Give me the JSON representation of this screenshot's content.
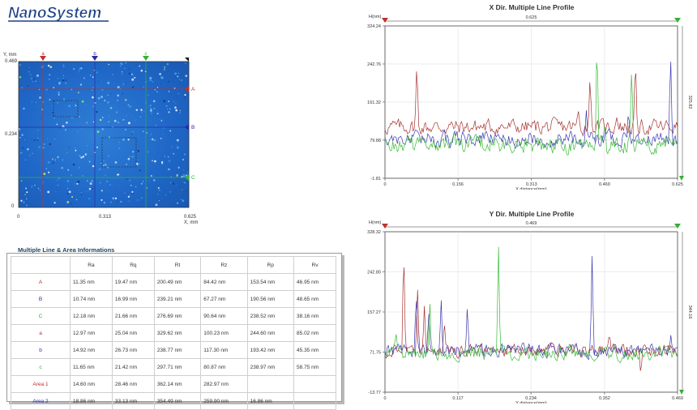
{
  "app": {
    "logo_text": "NanoSystem"
  },
  "map": {
    "y_unit": "Y, mm",
    "x_unit": "X, mm",
    "y_ticks": [
      "0.469",
      "0.234",
      "0"
    ],
    "x_ticks": [
      "0",
      "0.313",
      "0.625"
    ],
    "top_markers": [
      {
        "label": "a",
        "color": "#c0302a"
      },
      {
        "label": "b",
        "color": "#2a2aa8"
      },
      {
        "label": "c",
        "color": "#35b035"
      }
    ],
    "side_markers": [
      {
        "label": "A",
        "color": "#c0302a"
      },
      {
        "label": "B",
        "color": "#2a2aa8"
      },
      {
        "label": "C",
        "color": "#35b035"
      }
    ]
  },
  "info": {
    "title": "Multiple Line & Area Informations",
    "headers": [
      "",
      "Ra",
      "Rq",
      "Rt",
      "Rz",
      "Rp",
      "Rv"
    ],
    "rows": [
      {
        "name": "A",
        "color": "#c0302a",
        "cells": [
          "11.35 nm",
          "19.47 nm",
          "200.49 nm",
          "84.42 nm",
          "153.54 nm",
          "46.95 nm"
        ]
      },
      {
        "name": "B",
        "color": "#2a2aa8",
        "cells": [
          "10.74 nm",
          "16.99 nm",
          "239.21 nm",
          "67.27 nm",
          "190.56 nm",
          "48.65 nm"
        ]
      },
      {
        "name": "C",
        "color": "#35b035",
        "cells": [
          "12.18 nm",
          "21.66 nm",
          "276.69 nm",
          "90.64 nm",
          "238.52 nm",
          "38.16 nm"
        ]
      },
      {
        "name": "a",
        "color": "#c0302a",
        "cells": [
          "12.97 nm",
          "25.04 nm",
          "329.62 nm",
          "100.23 nm",
          "244.60 nm",
          "85.02 nm"
        ]
      },
      {
        "name": "b",
        "color": "#2a2aa8",
        "cells": [
          "14.92 nm",
          "26.73 nm",
          "238.77 nm",
          "117.30 nm",
          "193.42 nm",
          "45.35 nm"
        ]
      },
      {
        "name": "c",
        "color": "#35b035",
        "cells": [
          "11.65 nm",
          "21.42 nm",
          "297.71 nm",
          "80.87 nm",
          "238.97 nm",
          "58.75 nm"
        ]
      },
      {
        "name": "Area 1",
        "color": "#c0302a",
        "cells": [
          "14.60 nm",
          "28.46 nm",
          "362.14 nm",
          "282.97 nm",
          "",
          ""
        ]
      },
      {
        "name": "Area 2",
        "color": "#2a2aa8",
        "cells": [
          "18.86 nm",
          "33.13 nm",
          "354.49 nm",
          "259.90 nm",
          "16.86 nm",
          ""
        ]
      }
    ]
  },
  "chart_data": [
    {
      "type": "line",
      "title": "X Dir. Multiple Line Profile",
      "ylabel": "H(nm)",
      "xlabel": "X distance(mm)",
      "top_value": "0.625",
      "right_value": "325.82",
      "ylim": [
        -1.81,
        324.24
      ],
      "y_ticks": [
        "324.24",
        "242.76",
        "161.32",
        "79.88",
        "-1.81"
      ],
      "xlim": [
        0,
        0.625
      ],
      "x_ticks": [
        "0",
        "0.156",
        "0.313",
        "0.469",
        "0.625"
      ],
      "series": [
        {
          "color": "#a83232",
          "base": 108,
          "noise": 14,
          "spikes": [
            [
              0.068,
              252
            ],
            [
              0.413,
              145
            ],
            [
              0.438,
              220
            ],
            [
              0.495,
              130
            ],
            [
              0.535,
              260
            ]
          ]
        },
        {
          "color": "#3a3ab0",
          "base": 82,
          "noise": 14,
          "spikes": [
            [
              0.43,
              150
            ],
            [
              0.52,
              140
            ],
            [
              0.61,
              278
            ]
          ]
        },
        {
          "color": "#3cba3c",
          "base": 70,
          "noise": 16,
          "spikes": [
            [
              0.453,
              318
            ],
            [
              0.47,
              125
            ],
            [
              0.527,
              245
            ]
          ]
        }
      ]
    },
    {
      "type": "line",
      "title": "Y Dir. Multiple Line Profile",
      "ylabel": "H(nm)",
      "xlabel": "Y distance(mm)",
      "top_value": "0.469",
      "right_value": "344.16",
      "ylim": [
        -13.77,
        328.32
      ],
      "y_ticks": [
        "328.32",
        "242.80",
        "157.27",
        "71.75",
        "-13.77"
      ],
      "xlim": [
        0,
        0.469
      ],
      "x_ticks": [
        "0",
        "0.117",
        "0.234",
        "0.352",
        "0.469"
      ],
      "series": [
        {
          "color": "#a83232",
          "base": 76,
          "noise": 12,
          "spikes": [
            [
              0.03,
              304
            ],
            [
              0.052,
              220
            ],
            [
              0.063,
              175
            ],
            [
              0.095,
              140
            ],
            [
              0.36,
              110
            ],
            [
              0.41,
              20
            ]
          ]
        },
        {
          "color": "#3a3ab0",
          "base": 74,
          "noise": 12,
          "spikes": [
            [
              0.05,
              200
            ],
            [
              0.07,
              165
            ],
            [
              0.09,
              190
            ],
            [
              0.132,
              175
            ],
            [
              0.332,
              283
            ],
            [
              0.458,
              110
            ]
          ]
        },
        {
          "color": "#3cba3c",
          "base": 70,
          "noise": 13,
          "spikes": [
            [
              0.018,
              110
            ],
            [
              0.072,
              180
            ],
            [
              0.182,
              312
            ],
            [
              0.44,
              85
            ]
          ]
        }
      ]
    }
  ]
}
